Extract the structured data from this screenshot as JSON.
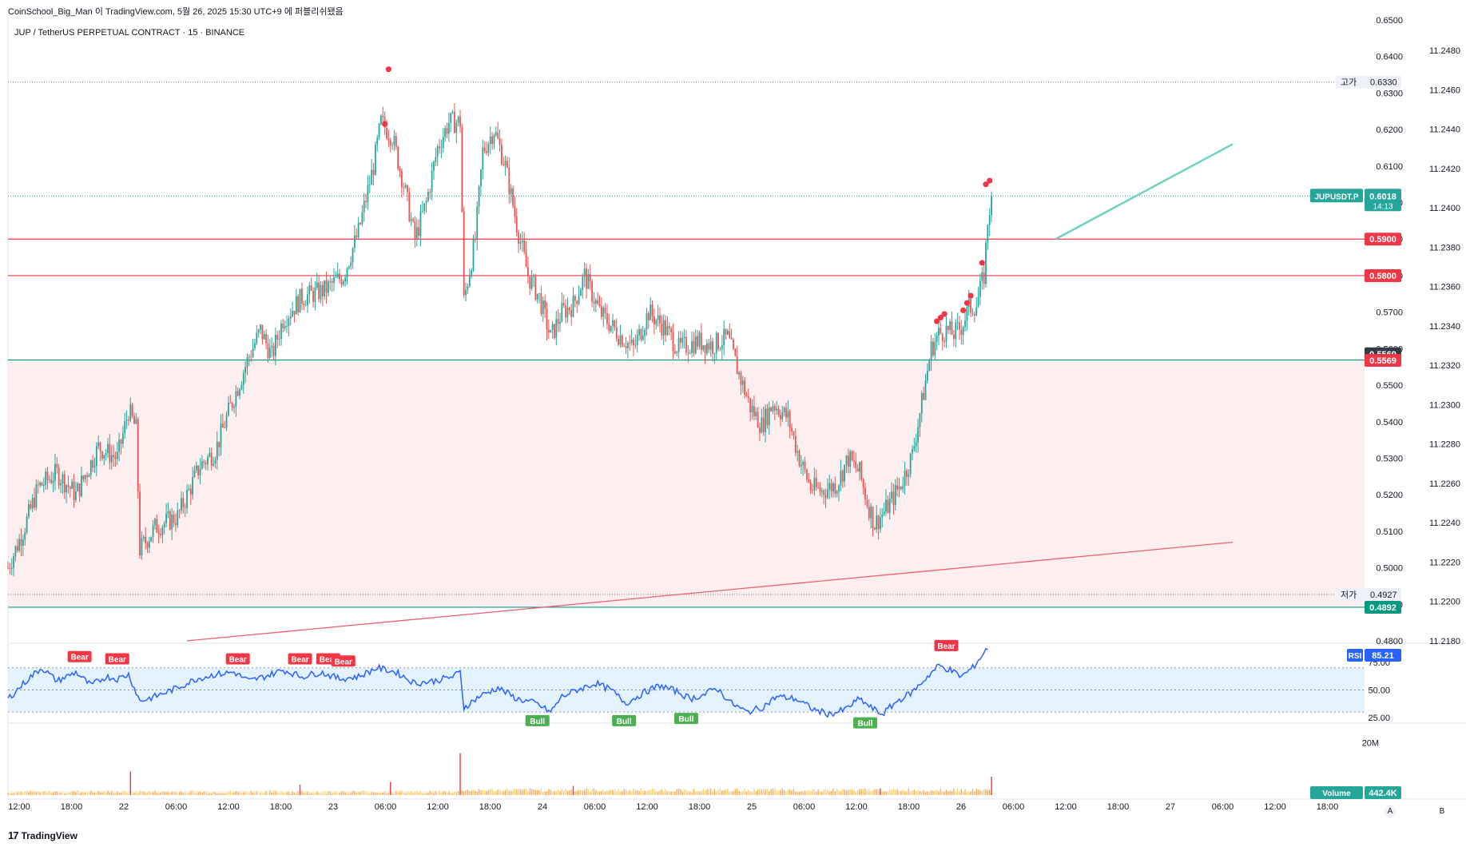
{
  "header": {
    "attribution": "CoinSchool_Big_Man 이 TradingView.com, 5월 26, 2025 15:30 UTC+9 에 퍼블리쉬됐음",
    "symbol_line": "JUP / TetherUS PERPETUAL CONTRACT · 15 · BINANCE"
  },
  "footer": {
    "logo_text": "TradingView",
    "buttons": [
      "A",
      "B"
    ]
  },
  "colors": {
    "up": "#26a69a",
    "down": "#ef5350",
    "support_zone": "#fdeff0",
    "rsi_line": "#2962ff",
    "rsi_band": "#e3f2fd",
    "trendline_teal": "#6fd1c0",
    "trendline_red": "#f06070"
  },
  "chart_data": [
    {
      "type": "candlestick",
      "title": "JUP / TetherUS PERPETUAL CONTRACT · 15 · BINANCE",
      "ylim": [
        0.48,
        0.65
      ],
      "y_ticks": [
        "0.6500",
        "0.6400",
        "0.6300",
        "0.6200",
        "0.6100",
        "0.6000",
        "0.5900",
        "0.5800",
        "0.5700",
        "0.5600",
        "0.5500",
        "0.5400",
        "0.5300",
        "0.5200",
        "0.5100",
        "0.5000",
        "0.4900",
        "0.4800"
      ],
      "secondary_axis_ticks": [
        "11.2480",
        "11.2460",
        "11.2440",
        "11.2420",
        "11.2400",
        "11.2380",
        "11.2360",
        "11.2340",
        "11.2320",
        "11.2300",
        "11.2280",
        "11.2260",
        "11.2240",
        "11.2220",
        "11.2200",
        "11.2180"
      ],
      "x_ticks": [
        "12:00",
        "18:00",
        "22",
        "06:00",
        "12:00",
        "18:00",
        "23",
        "06:00",
        "12:00",
        "18:00",
        "24",
        "06:00",
        "12:00",
        "18:00",
        "25",
        "06:00",
        "12:00",
        "18:00",
        "26",
        "06:00",
        "12:00",
        "18:00",
        "27",
        "06:00",
        "12:00",
        "18:00"
      ],
      "price_path": [
        [
          0,
          0.5
        ],
        [
          8,
          0.51
        ],
        [
          16,
          0.522
        ],
        [
          26,
          0.526
        ],
        [
          36,
          0.52
        ],
        [
          48,
          0.533
        ],
        [
          58,
          0.53
        ],
        [
          64,
          0.543
        ],
        [
          68,
          0.538
        ],
        [
          70,
          0.505
        ],
        [
          78,
          0.511
        ],
        [
          90,
          0.514
        ],
        [
          102,
          0.528
        ],
        [
          110,
          0.532
        ],
        [
          118,
          0.544
        ],
        [
          128,
          0.558
        ],
        [
          134,
          0.565
        ],
        [
          140,
          0.558
        ],
        [
          146,
          0.568
        ],
        [
          156,
          0.574
        ],
        [
          168,
          0.576
        ],
        [
          178,
          0.58
        ],
        [
          186,
          0.592
        ],
        [
          194,
          0.61
        ],
        [
          198,
          0.622
        ],
        [
          204,
          0.618
        ],
        [
          210,
          0.605
        ],
        [
          216,
          0.59
        ],
        [
          222,
          0.6
        ],
        [
          228,
          0.615
        ],
        [
          234,
          0.622
        ],
        [
          240,
          0.622
        ],
        [
          242,
          0.573
        ],
        [
          248,
          0.59
        ],
        [
          252,
          0.614
        ],
        [
          258,
          0.62
        ],
        [
          264,
          0.61
        ],
        [
          270,
          0.594
        ],
        [
          276,
          0.58
        ],
        [
          282,
          0.574
        ],
        [
          288,
          0.563
        ],
        [
          294,
          0.57
        ],
        [
          300,
          0.572
        ],
        [
          306,
          0.58
        ],
        [
          314,
          0.57
        ],
        [
          324,
          0.564
        ],
        [
          332,
          0.56
        ],
        [
          340,
          0.57
        ],
        [
          348,
          0.566
        ],
        [
          356,
          0.56
        ],
        [
          366,
          0.562
        ],
        [
          374,
          0.561
        ],
        [
          382,
          0.563
        ],
        [
          388,
          0.553
        ],
        [
          394,
          0.544
        ],
        [
          400,
          0.539
        ],
        [
          406,
          0.545
        ],
        [
          414,
          0.541
        ],
        [
          420,
          0.53
        ],
        [
          426,
          0.522
        ],
        [
          432,
          0.521
        ],
        [
          440,
          0.523
        ],
        [
          446,
          0.53
        ],
        [
          452,
          0.526
        ],
        [
          456,
          0.518
        ],
        [
          460,
          0.512
        ],
        [
          466,
          0.516
        ],
        [
          474,
          0.523
        ],
        [
          480,
          0.531
        ],
        [
          486,
          0.548
        ],
        [
          490,
          0.56
        ],
        [
          494,
          0.564
        ],
        [
          498,
          0.565
        ],
        [
          502,
          0.564
        ],
        [
          506,
          0.566
        ],
        [
          510,
          0.571
        ],
        [
          514,
          0.572
        ],
        [
          518,
          0.58
        ],
        [
          520,
          0.595
        ],
        [
          522,
          0.6018
        ]
      ],
      "markers": [
        {
          "type": "dot",
          "x": 202,
          "y": 0.6365
        },
        {
          "type": "dot",
          "x": 200,
          "y": 0.6215
        },
        {
          "type": "dot",
          "x": 493,
          "y": 0.5675
        },
        {
          "type": "dot",
          "x": 495,
          "y": 0.5685
        },
        {
          "type": "dot",
          "x": 497,
          "y": 0.5695
        },
        {
          "type": "dot",
          "x": 507,
          "y": 0.5705
        },
        {
          "type": "dot",
          "x": 509,
          "y": 0.5725
        },
        {
          "type": "dot",
          "x": 511,
          "y": 0.5745
        },
        {
          "type": "dot",
          "x": 517,
          "y": 0.5835
        },
        {
          "type": "dot",
          "x": 519,
          "y": 0.605
        },
        {
          "type": "dot",
          "x": 521,
          "y": 0.606
        }
      ],
      "horizontal_levels": [
        {
          "value": 0.59,
          "label": "0.5900",
          "color": "#f23645"
        },
        {
          "value": 0.58,
          "label": "0.5800",
          "color": "#f23645"
        },
        {
          "value": 0.5569,
          "label": "0.5569",
          "color": "#089981"
        },
        {
          "value": 0.4892,
          "label": "0.4892",
          "color": "#089981"
        }
      ],
      "price_labels": [
        {
          "text": "0.5569",
          "value": 0.5569,
          "bg": "#363a45"
        },
        {
          "text": "0.5569",
          "value": 0.5569,
          "bg": "#f23645"
        }
      ],
      "high": {
        "label": "고가",
        "value": 0.633,
        "text": "0.6330"
      },
      "low": {
        "label": "저가",
        "value": 0.4927,
        "text": "0.4927"
      },
      "last": {
        "symbol": "JUPUSDT.P",
        "value": 0.6018,
        "text": "0.6018",
        "countdown": "14:13"
      },
      "support_zone": [
        0.4892,
        0.5569
      ],
      "trendlines": [
        {
          "color": "#6fd1c0",
          "points": [
            [
              556,
              0.59
            ],
            [
              650,
              0.616
            ]
          ]
        },
        {
          "color": "#f06070",
          "points": [
            [
              95,
              0.48
            ],
            [
              650,
              0.507
            ]
          ]
        }
      ]
    },
    {
      "type": "line",
      "name": "RSI",
      "value": "85.21",
      "y_ticks": [
        "75.00",
        "50.00",
        "25.00"
      ],
      "ylim": [
        20,
        90
      ],
      "bands": [
        30,
        70
      ],
      "path": [
        [
          0,
          42
        ],
        [
          12,
          62
        ],
        [
          18,
          70
        ],
        [
          26,
          58
        ],
        [
          36,
          66
        ],
        [
          44,
          54
        ],
        [
          52,
          62
        ],
        [
          58,
          60
        ],
        [
          64,
          64
        ],
        [
          70,
          40
        ],
        [
          78,
          44
        ],
        [
          90,
          52
        ],
        [
          100,
          60
        ],
        [
          110,
          64
        ],
        [
          120,
          66
        ],
        [
          128,
          58
        ],
        [
          136,
          62
        ],
        [
          146,
          68
        ],
        [
          156,
          62
        ],
        [
          166,
          66
        ],
        [
          176,
          60
        ],
        [
          186,
          62
        ],
        [
          196,
          70
        ],
        [
          206,
          66
        ],
        [
          216,
          56
        ],
        [
          226,
          58
        ],
        [
          236,
          62
        ],
        [
          240,
          66
        ],
        [
          242,
          34
        ],
        [
          250,
          44
        ],
        [
          260,
          52
        ],
        [
          270,
          42
        ],
        [
          280,
          38
        ],
        [
          288,
          30
        ],
        [
          294,
          44
        ],
        [
          302,
          50
        ],
        [
          312,
          56
        ],
        [
          320,
          50
        ],
        [
          328,
          38
        ],
        [
          338,
          48
        ],
        [
          346,
          54
        ],
        [
          356,
          48
        ],
        [
          362,
          42
        ],
        [
          370,
          46
        ],
        [
          376,
          52
        ],
        [
          384,
          38
        ],
        [
          392,
          30
        ],
        [
          400,
          34
        ],
        [
          408,
          44
        ],
        [
          418,
          42
        ],
        [
          428,
          32
        ],
        [
          436,
          28
        ],
        [
          444,
          32
        ],
        [
          452,
          42
        ],
        [
          458,
          34
        ],
        [
          464,
          28
        ],
        [
          472,
          40
        ],
        [
          480,
          48
        ],
        [
          488,
          62
        ],
        [
          494,
          72
        ],
        [
          500,
          68
        ],
        [
          506,
          62
        ],
        [
          512,
          70
        ],
        [
          520,
          88
        ]
      ],
      "divergence_labels": [
        {
          "text": "Bear",
          "x": 38,
          "y": 70,
          "kind": "bear"
        },
        {
          "text": "Bear",
          "x": 58,
          "y": 68,
          "kind": "bear"
        },
        {
          "text": "Bear",
          "x": 122,
          "y": 68,
          "kind": "bear"
        },
        {
          "text": "Bear",
          "x": 155,
          "y": 68,
          "kind": "bear"
        },
        {
          "text": "Bear",
          "x": 170,
          "y": 68,
          "kind": "bear"
        },
        {
          "text": "Bear",
          "x": 178,
          "y": 66,
          "kind": "bear"
        },
        {
          "text": "Bear",
          "x": 498,
          "y": 80,
          "kind": "bear"
        },
        {
          "text": "Bull",
          "x": 281,
          "y": 28,
          "kind": "bull"
        },
        {
          "text": "Bull",
          "x": 327,
          "y": 28,
          "kind": "bull"
        },
        {
          "text": "Bull",
          "x": 360,
          "y": 30,
          "kind": "bull"
        },
        {
          "text": "Bull",
          "x": 455,
          "y": 26,
          "kind": "bull"
        }
      ]
    },
    {
      "type": "bar",
      "name": "Volume",
      "value": "442.4K",
      "y_ticks": [
        "20M"
      ],
      "ylim": [
        0,
        26000000
      ],
      "spikes": [
        [
          65,
          9000000
        ],
        [
          155,
          4000000
        ],
        [
          203,
          5000000
        ],
        [
          240,
          16000000
        ],
        [
          300,
          3500000
        ],
        [
          463,
          2500000
        ],
        [
          522,
          7000000
        ]
      ]
    }
  ]
}
